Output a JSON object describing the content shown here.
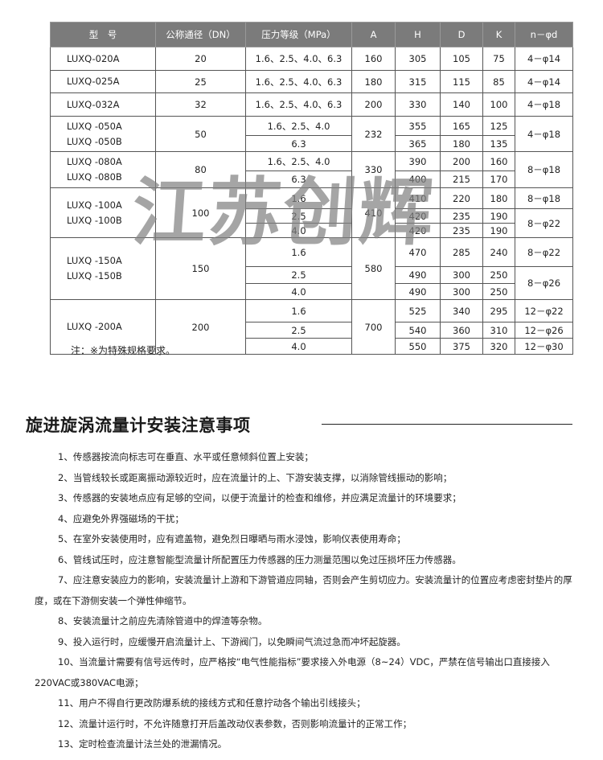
{
  "table": {
    "headers": [
      "型　号",
      "公称通径（DN）",
      "压力等级（MPa）",
      "A",
      "H",
      "D",
      "K",
      "n－φd"
    ],
    "groups": [
      {
        "models": [
          "LUXQ-020A"
        ],
        "dn": "20",
        "a": "160",
        "rows": [
          {
            "p": "1.6、2.5、4.0、6.3",
            "h": "305",
            "d": "105",
            "k": "75"
          }
        ],
        "nphi": [
          {
            "v": "4－φ14",
            "span": 1
          }
        ],
        "heights": [
          29
        ]
      },
      {
        "models": [
          "LUXQ-025A"
        ],
        "dn": "25",
        "a": "180",
        "rows": [
          {
            "p": "1.6、2.5、4.0、6.3",
            "h": "315",
            "d": "115",
            "k": "85"
          }
        ],
        "nphi": [
          {
            "v": "4－φ14",
            "span": 1
          }
        ],
        "heights": [
          28
        ]
      },
      {
        "models": [
          "LUXQ-032A"
        ],
        "dn": "32",
        "a": "200",
        "rows": [
          {
            "p": "1.6、2.5、4.0、6.3",
            "h": "330",
            "d": "140",
            "k": "100"
          }
        ],
        "nphi": [
          {
            "v": "4－φ18",
            "span": 1
          }
        ],
        "heights": [
          29
        ]
      },
      {
        "models": [
          "LUXQ -050A",
          "LUXQ -050B"
        ],
        "dn": "50",
        "a": "232",
        "rows": [
          {
            "p": "1.6、2.5、4.0",
            "h": "355",
            "d": "165",
            "k": "125"
          },
          {
            "p": "6.3",
            "h": "365",
            "d": "180",
            "k": "135"
          }
        ],
        "nphi": [
          {
            "v": "4－φ18",
            "span": 2
          }
        ],
        "heights": [
          24,
          20
        ]
      },
      {
        "models": [
          "LUXQ -080A",
          "LUXQ -080B"
        ],
        "dn": "80",
        "a": "330",
        "rows": [
          {
            "p": "1.6、2.5、4.0",
            "h": "390",
            "d": "200",
            "k": "160"
          },
          {
            "p": "6.3",
            "h": "400",
            "d": "215",
            "k": "170"
          }
        ],
        "nphi": [
          {
            "v": "8－φ18",
            "span": 2
          }
        ],
        "heights": [
          24,
          21
        ]
      },
      {
        "models": [
          "LUXQ -100A",
          "LUXQ -100B"
        ],
        "dn": "100",
        "a": "410",
        "rows": [
          {
            "p": "1.6",
            "h": "410",
            "d": "220",
            "k": "180"
          },
          {
            "p": "2.5",
            "h": "420",
            "d": "235",
            "k": "190"
          },
          {
            "p": "4.0",
            "h": "420",
            "d": "235",
            "k": "190"
          }
        ],
        "nphi": [
          {
            "v": "8－φ18",
            "span": 1
          },
          {
            "v": "8－φ22",
            "span": 2
          }
        ],
        "heights": [
          26,
          18,
          18
        ]
      },
      {
        "models": [
          "LUXQ -150A",
          "LUXQ -150B"
        ],
        "dn": "150",
        "a": "580",
        "rows": [
          {
            "p": "1.6",
            "h": "470",
            "d": "285",
            "k": "240"
          },
          {
            "p": "2.5",
            "h": "490",
            "d": "300",
            "k": "250"
          },
          {
            "p": "4.0",
            "h": "490",
            "d": "300",
            "k": "250"
          }
        ],
        "nphi": [
          {
            "v": "8－φ22",
            "span": 1
          },
          {
            "v": "8－φ26",
            "span": 2
          }
        ],
        "heights": [
          36,
          21,
          20
        ]
      },
      {
        "models": [
          "LUXQ -200A"
        ],
        "dn": "200",
        "a": "700",
        "rows": [
          {
            "p": "1.6",
            "h": "525",
            "d": "340",
            "k": "295"
          },
          {
            "p": "2.5",
            "h": "540",
            "d": "360",
            "k": "310"
          },
          {
            "p": "4.0",
            "h": "550",
            "d": "375",
            "k": "320"
          }
        ],
        "nphi": [
          {
            "v": "12－φ22",
            "span": 1
          },
          {
            "v": "12－φ26",
            "span": 1
          },
          {
            "v": "12－φ30",
            "span": 1
          }
        ],
        "heights": [
          28,
          20,
          20
        ]
      }
    ]
  },
  "watermark": "江苏创辉",
  "note": "注：※为特殊规格要求。",
  "section": {
    "title": "旋进旋涡流量计安装注意事项",
    "items": [
      "1、传感器按流向标志可在垂直、水平或任意倾斜位置上安装；",
      "2、当管线较长或距离振动源较近时，应在流量计的上、下游安装支撑，以消除管线振动的影响；",
      "3、传感器的安装地点应有足够的空间，以便于流量计的检查和维修，并应满足流量计的环境要求；",
      "4、应避免外界强磁场的干扰；",
      "5、在室外安装使用时，应有遮盖物，避免烈日曝晒与雨水浸蚀，影响仪表使用寿命；",
      "6、管线试压时，应注意智能型流量计所配置压力传感器的压力测量范围以免过压损坏压力传感器。",
      "7、应注意安装应力的影响，安装流量计上游和下游管道应同轴，否则会产生剪切应力。安装流量计的位置应考虑密封垫片的厚度，或在下游侧安装一个弹性伸缩节。",
      "8、安装流量计之前应先清除管道中的焊渣等杂物。",
      "9、投入运行时，应缓慢开启流量计上、下游阀门，以免瞬间气流过急而冲坏起旋器。",
      "10、当流量计需要有信号远传时，应严格按“电气性能指标”要求接入外电源（8~24）VDC，严禁在信号输出口直接接入220VAC或380VAC电源；",
      "11、用户不得自行更改防爆系统的接线方式和任意拧动各个输出引线接头；",
      "12、流量计运行时，不允许随意打开后盖改动仪表参数，否则影响流量计的正常工作；",
      "13、定时检查流量计法兰处的泄漏情况。"
    ]
  }
}
